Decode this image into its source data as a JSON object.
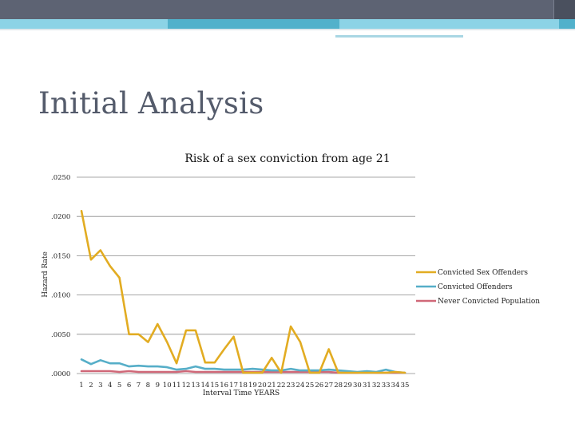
{
  "slide": {
    "title": "Initial Analysis"
  },
  "chart_data": {
    "type": "line",
    "title": "Risk of a sex conviction from age 21",
    "xlabel": "Interval Time YEARS",
    "ylabel": "Hazard Rate",
    "x": [
      1,
      2,
      3,
      4,
      5,
      6,
      7,
      8,
      9,
      10,
      11,
      12,
      13,
      14,
      15,
      16,
      17,
      18,
      19,
      20,
      21,
      22,
      23,
      24,
      25,
      26,
      27,
      28,
      29,
      30,
      31,
      32,
      33,
      34,
      35
    ],
    "x_tick_labels": [
      "1",
      "2",
      "3",
      "4",
      "5",
      "6",
      "7",
      "8",
      "9",
      "10",
      "11",
      "12",
      "13",
      "14",
      "15",
      "16",
      "17",
      "18",
      "19",
      "20",
      "21",
      "22",
      "23",
      "24",
      "25",
      "26",
      "27",
      "28",
      "29",
      "30",
      "31",
      "32",
      "33",
      "34",
      "35"
    ],
    "y_tick_labels": [
      ".0000",
      ".0050",
      ".0100",
      ".0150",
      ".0200",
      ".0250"
    ],
    "y_ticks": [
      0,
      0.005,
      0.01,
      0.015,
      0.02,
      0.025
    ],
    "ylim": [
      0,
      0.025
    ],
    "grid": "horizontal",
    "legend_position": "right",
    "series": [
      {
        "name": "Convicted Sex Offenders",
        "color": "#e2ac22",
        "values": [
          0.0207,
          0.0145,
          0.0157,
          0.0137,
          0.0122,
          0.005,
          0.005,
          0.004,
          0.0063,
          0.004,
          0.0013,
          0.0055,
          0.0055,
          0.0014,
          0.0014,
          0.0031,
          0.0047,
          0.0001,
          0.0001,
          0.0001,
          0.002,
          0.0001,
          0.006,
          0.004,
          0.0001,
          0.0001,
          0.0031,
          0.0001,
          0.0001,
          0.0001,
          0.0001,
          0.0001,
          0.0001,
          0.0002,
          0.0001
        ]
      },
      {
        "name": "Convicted Offenders",
        "color": "#56aec8",
        "values": [
          0.0018,
          0.0012,
          0.0017,
          0.0013,
          0.0013,
          0.0009,
          0.001,
          0.0009,
          0.0009,
          0.0008,
          0.0005,
          0.0006,
          0.0009,
          0.0006,
          0.0006,
          0.0005,
          0.0005,
          0.0005,
          0.0006,
          0.0005,
          0.0004,
          0.0004,
          0.0006,
          0.0004,
          0.0004,
          0.0004,
          0.0005,
          0.0004,
          0.0003,
          0.0002,
          0.0003,
          0.0002,
          0.0005,
          0.0002,
          0.0001
        ]
      },
      {
        "name": "Never Convicted Population",
        "color": "#d06878",
        "values": [
          0.0003,
          0.0003,
          0.0003,
          0.0003,
          0.0002,
          0.0003,
          0.0002,
          0.0002,
          0.0002,
          0.0002,
          0.0002,
          0.0003,
          0.0002,
          0.0002,
          0.0002,
          0.0002,
          0.0002,
          0.0002,
          0.0002,
          0.0002,
          0.0002,
          0.0002,
          0.0002,
          0.0002,
          0.0002,
          0.0002,
          0.0002,
          0.0001,
          0.0001,
          0.0001,
          0.0002,
          0.0001,
          0.0001,
          0.0001,
          0.0001
        ]
      }
    ]
  }
}
